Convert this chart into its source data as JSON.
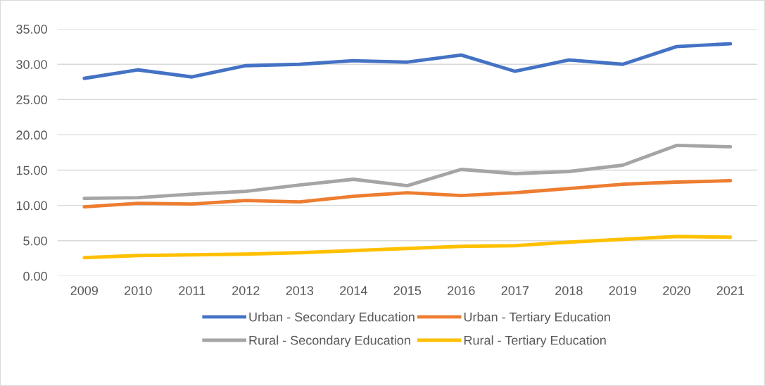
{
  "chart_data": {
    "type": "line",
    "categories": [
      "2009",
      "2010",
      "2011",
      "2012",
      "2013",
      "2014",
      "2015",
      "2016",
      "2017",
      "2018",
      "2019",
      "2020",
      "2021"
    ],
    "series": [
      {
        "name": "Urban - Secondary Education",
        "color": "#4472c4",
        "values": [
          28.0,
          29.2,
          28.2,
          29.8,
          30.0,
          30.5,
          30.3,
          31.3,
          29.0,
          30.6,
          30.0,
          32.5,
          32.9
        ]
      },
      {
        "name": "Urban - Tertiary Education",
        "color": "#ed7d31",
        "values": [
          9.8,
          10.3,
          10.2,
          10.7,
          10.5,
          11.3,
          11.8,
          11.4,
          11.8,
          12.4,
          13.0,
          13.3,
          13.5
        ]
      },
      {
        "name": "Rural - Secondary Education",
        "color": "#a5a5a5",
        "values": [
          11.0,
          11.1,
          11.6,
          12.0,
          12.9,
          13.7,
          12.8,
          15.1,
          14.5,
          14.8,
          15.7,
          18.5,
          18.3
        ]
      },
      {
        "name": "Rural - Tertiary Education",
        "color": "#ffc000",
        "values": [
          2.6,
          2.9,
          3.0,
          3.1,
          3.3,
          3.6,
          3.9,
          4.2,
          4.3,
          4.8,
          5.2,
          5.6,
          5.5
        ]
      }
    ],
    "ylim": [
      0,
      35
    ],
    "yticks": [
      {
        "value": 0,
        "label": "0.00"
      },
      {
        "value": 5,
        "label": "5.00"
      },
      {
        "value": 10,
        "label": "10.00"
      },
      {
        "value": 15,
        "label": "15.00"
      },
      {
        "value": 20,
        "label": "20.00"
      },
      {
        "value": 25,
        "label": "25.00"
      },
      {
        "value": 30,
        "label": "30.00"
      },
      {
        "value": 35,
        "label": "35.00"
      }
    ],
    "grid": "y",
    "legend": "bottom",
    "marker": "none",
    "line_style": "solid"
  }
}
